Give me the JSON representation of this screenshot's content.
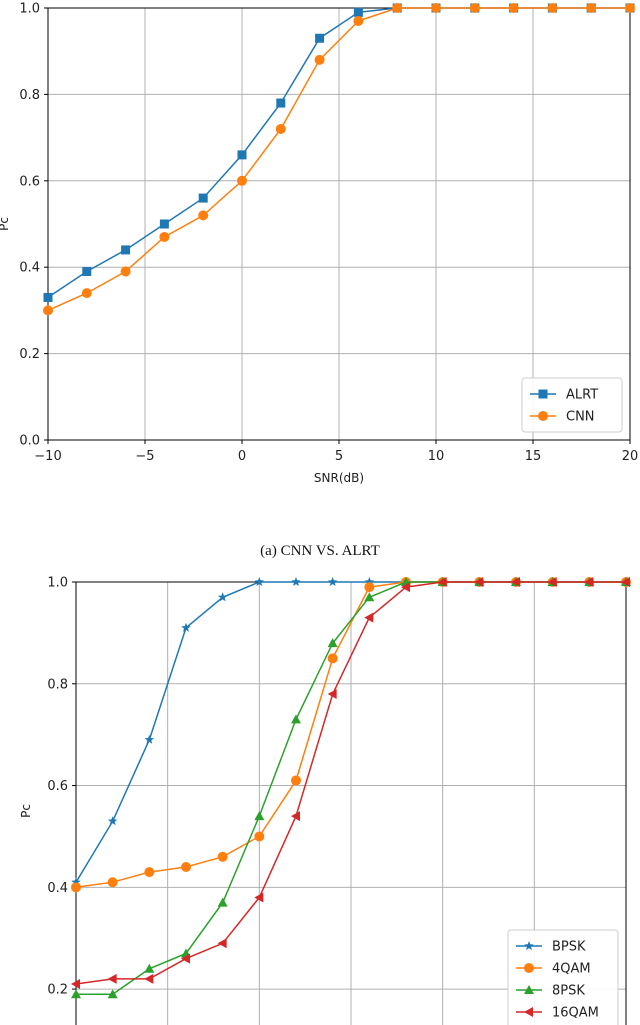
{
  "caption_a": "(a) CNN VS. ALRT",
  "chart_data": [
    {
      "type": "line",
      "xlabel": "SNR(dB)",
      "ylabel": "Pc",
      "xlim": [
        -10,
        20
      ],
      "ylim": [
        0,
        1
      ],
      "xticks": [
        "−10",
        "−5",
        "0",
        "5",
        "10",
        "15",
        "20"
      ],
      "yticks": [
        "0.0",
        "0.2",
        "0.4",
        "0.6",
        "0.8",
        "1.0"
      ],
      "grid": true,
      "legend_position": "lower-right",
      "x": [
        -10,
        -8,
        -6,
        -4,
        -2,
        0,
        2,
        4,
        6,
        8,
        10,
        12,
        14,
        16,
        18,
        20
      ],
      "series": [
        {
          "name": "ALRT",
          "color": "#1f77b4",
          "marker": "square",
          "values": [
            0.33,
            0.39,
            0.44,
            0.5,
            0.56,
            0.66,
            0.78,
            0.93,
            0.99,
            1.0,
            1.0,
            1.0,
            1.0,
            1.0,
            1.0,
            1.0
          ]
        },
        {
          "name": "CNN",
          "color": "#ff7f0e",
          "marker": "circle",
          "values": [
            0.3,
            0.34,
            0.39,
            0.47,
            0.52,
            0.6,
            0.72,
            0.88,
            0.97,
            1.0,
            1.0,
            1.0,
            1.0,
            1.0,
            1.0,
            1.0
          ]
        }
      ]
    },
    {
      "type": "line",
      "ylabel": "Pc",
      "ylim": [
        0.1,
        1.0
      ],
      "yticks": [
        "0.2",
        "0.4",
        "0.6",
        "0.8",
        "1.0"
      ],
      "grid": true,
      "legend_position": "lower-right",
      "x": [
        -10,
        -8,
        -6,
        -4,
        -2,
        0,
        2,
        4,
        6,
        8,
        10,
        12,
        14,
        16,
        18,
        20
      ],
      "series": [
        {
          "name": "BPSK",
          "color": "#1f77b4",
          "marker": "star",
          "values": [
            0.41,
            0.53,
            0.69,
            0.91,
            0.97,
            1.0,
            1.0,
            1.0,
            1.0,
            1.0,
            1.0,
            1.0,
            1.0,
            1.0,
            1.0,
            1.0
          ]
        },
        {
          "name": "4QAM",
          "color": "#ff7f0e",
          "marker": "circle",
          "values": [
            0.4,
            0.41,
            0.43,
            0.44,
            0.46,
            0.5,
            0.61,
            0.85,
            0.99,
            1.0,
            1.0,
            1.0,
            1.0,
            1.0,
            1.0,
            1.0
          ]
        },
        {
          "name": "8PSK",
          "color": "#2ca02c",
          "marker": "triangle-up",
          "values": [
            0.19,
            0.19,
            0.24,
            0.27,
            0.37,
            0.54,
            0.73,
            0.88,
            0.97,
            1.0,
            1.0,
            1.0,
            1.0,
            1.0,
            1.0,
            1.0
          ]
        },
        {
          "name": "16QAM",
          "color": "#d62728",
          "marker": "triangle-left",
          "values": [
            0.21,
            0.22,
            0.22,
            0.26,
            0.29,
            0.38,
            0.54,
            0.78,
            0.93,
            0.99,
            1.0,
            1.0,
            1.0,
            1.0,
            1.0,
            1.0
          ]
        }
      ]
    }
  ]
}
